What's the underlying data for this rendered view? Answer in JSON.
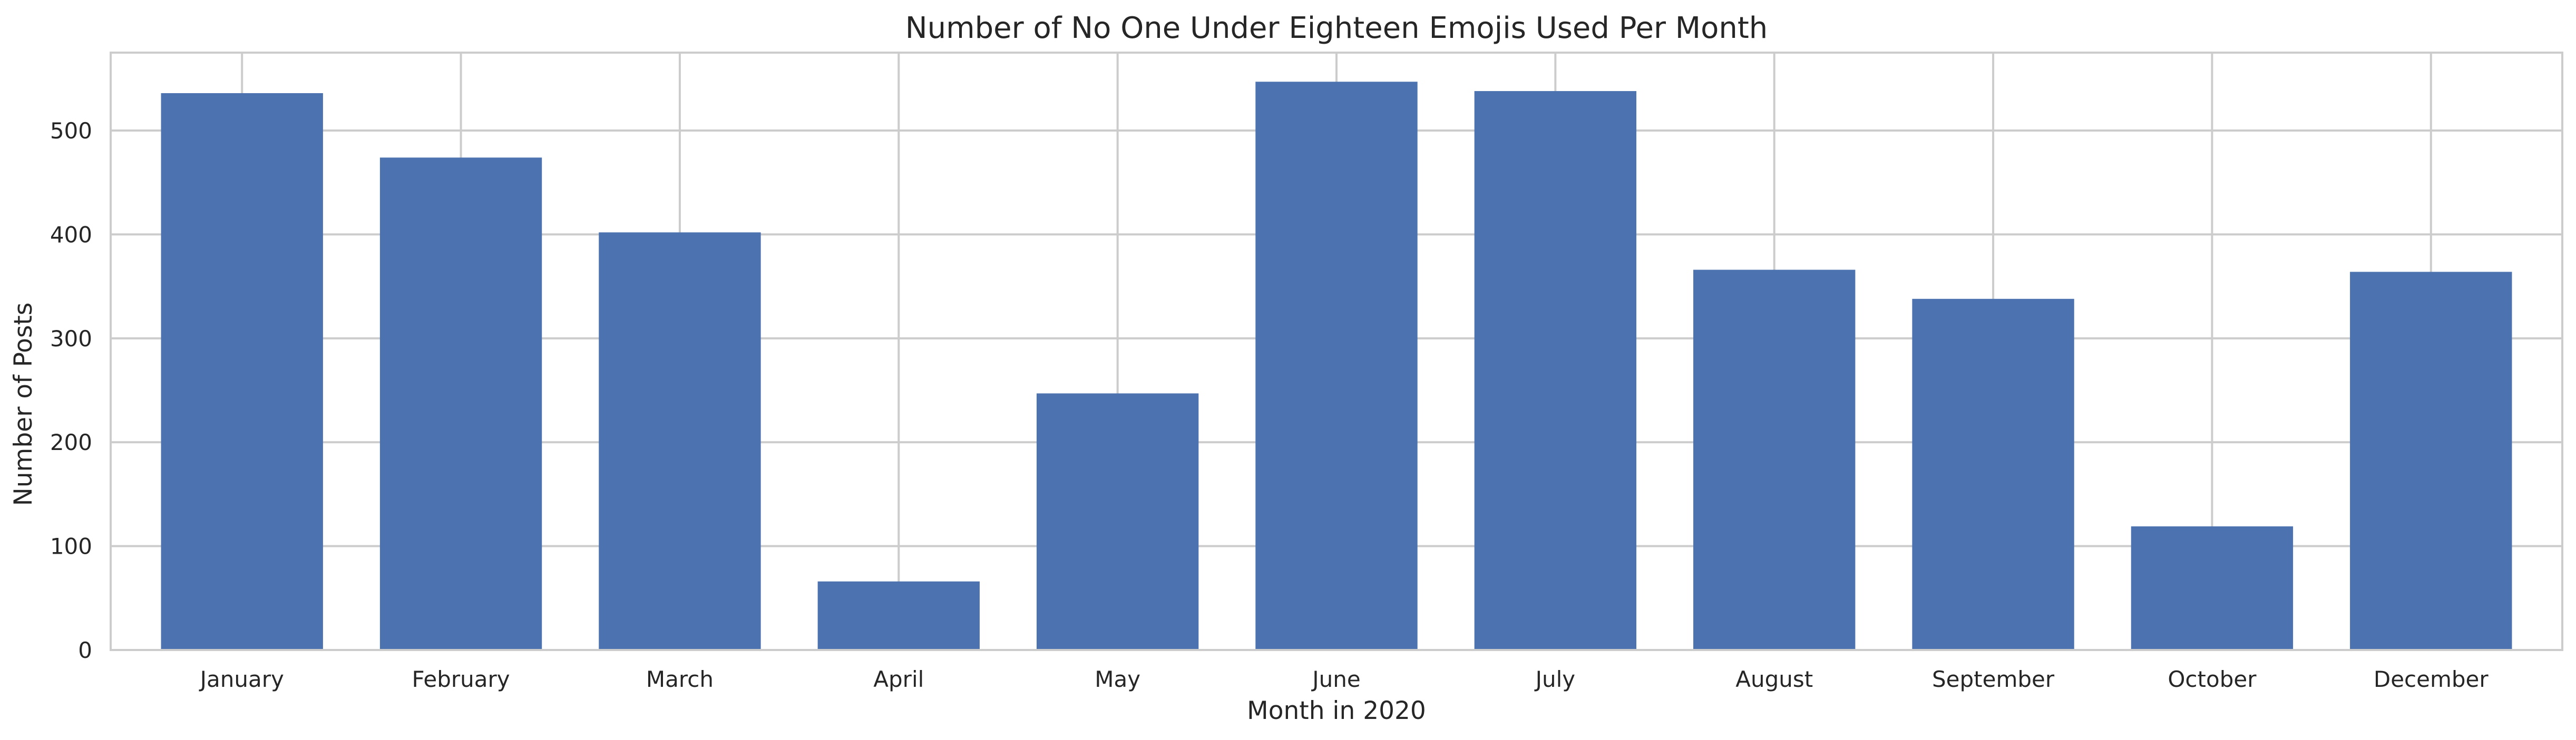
{
  "chart_data": {
    "type": "bar",
    "title": "Number of No One Under Eighteen Emojis Used Per Month",
    "xlabel": "Month in 2020",
    "ylabel": "Number of Posts",
    "categories": [
      "January",
      "February",
      "March",
      "April",
      "May",
      "June",
      "July",
      "August",
      "September",
      "October",
      "December"
    ],
    "values": [
      536,
      474,
      402,
      66,
      247,
      547,
      538,
      366,
      338,
      119,
      364
    ],
    "ylim": [
      0,
      575
    ],
    "yticks": [
      0,
      100,
      200,
      300,
      400,
      500
    ],
    "grid": true,
    "bar_color": "#4c72b0",
    "grid_color": "#cccccc",
    "text_color": "#262626"
  }
}
